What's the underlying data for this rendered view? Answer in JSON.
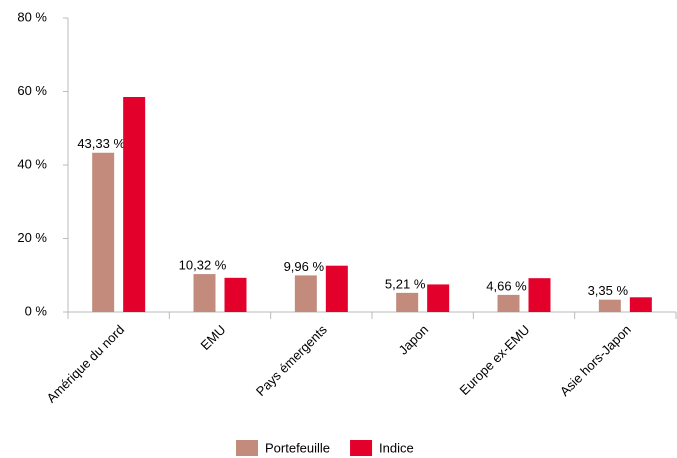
{
  "chart_data": {
    "type": "bar",
    "categories": [
      "Amérique du nord",
      "EMU",
      "Pays émergents",
      "Japon",
      "Europe ex-EMU",
      "Asie hors-Japon"
    ],
    "series": [
      {
        "name": "Portefeuille",
        "color": "#c38b7c",
        "values": [
          43.33,
          10.32,
          9.96,
          5.21,
          4.66,
          3.35
        ],
        "value_labels": [
          "43,33 %",
          "10,32 %",
          "9,96 %",
          "5,21 %",
          "4,66 %",
          "3,35 %"
        ]
      },
      {
        "name": "Indice",
        "color": "#e3002a",
        "values": [
          58.5,
          9.3,
          12.6,
          7.5,
          9.2,
          4
        ]
      }
    ],
    "ylim": [
      0,
      80
    ],
    "yticks": [
      {
        "value": 0,
        "label": "0 %"
      },
      {
        "value": 20,
        "label": "20 %"
      },
      {
        "value": 40,
        "label": "40 %"
      },
      {
        "value": 60,
        "label": "60 %"
      },
      {
        "value": 80,
        "label": "80 %"
      }
    ],
    "legend": "bottom"
  }
}
